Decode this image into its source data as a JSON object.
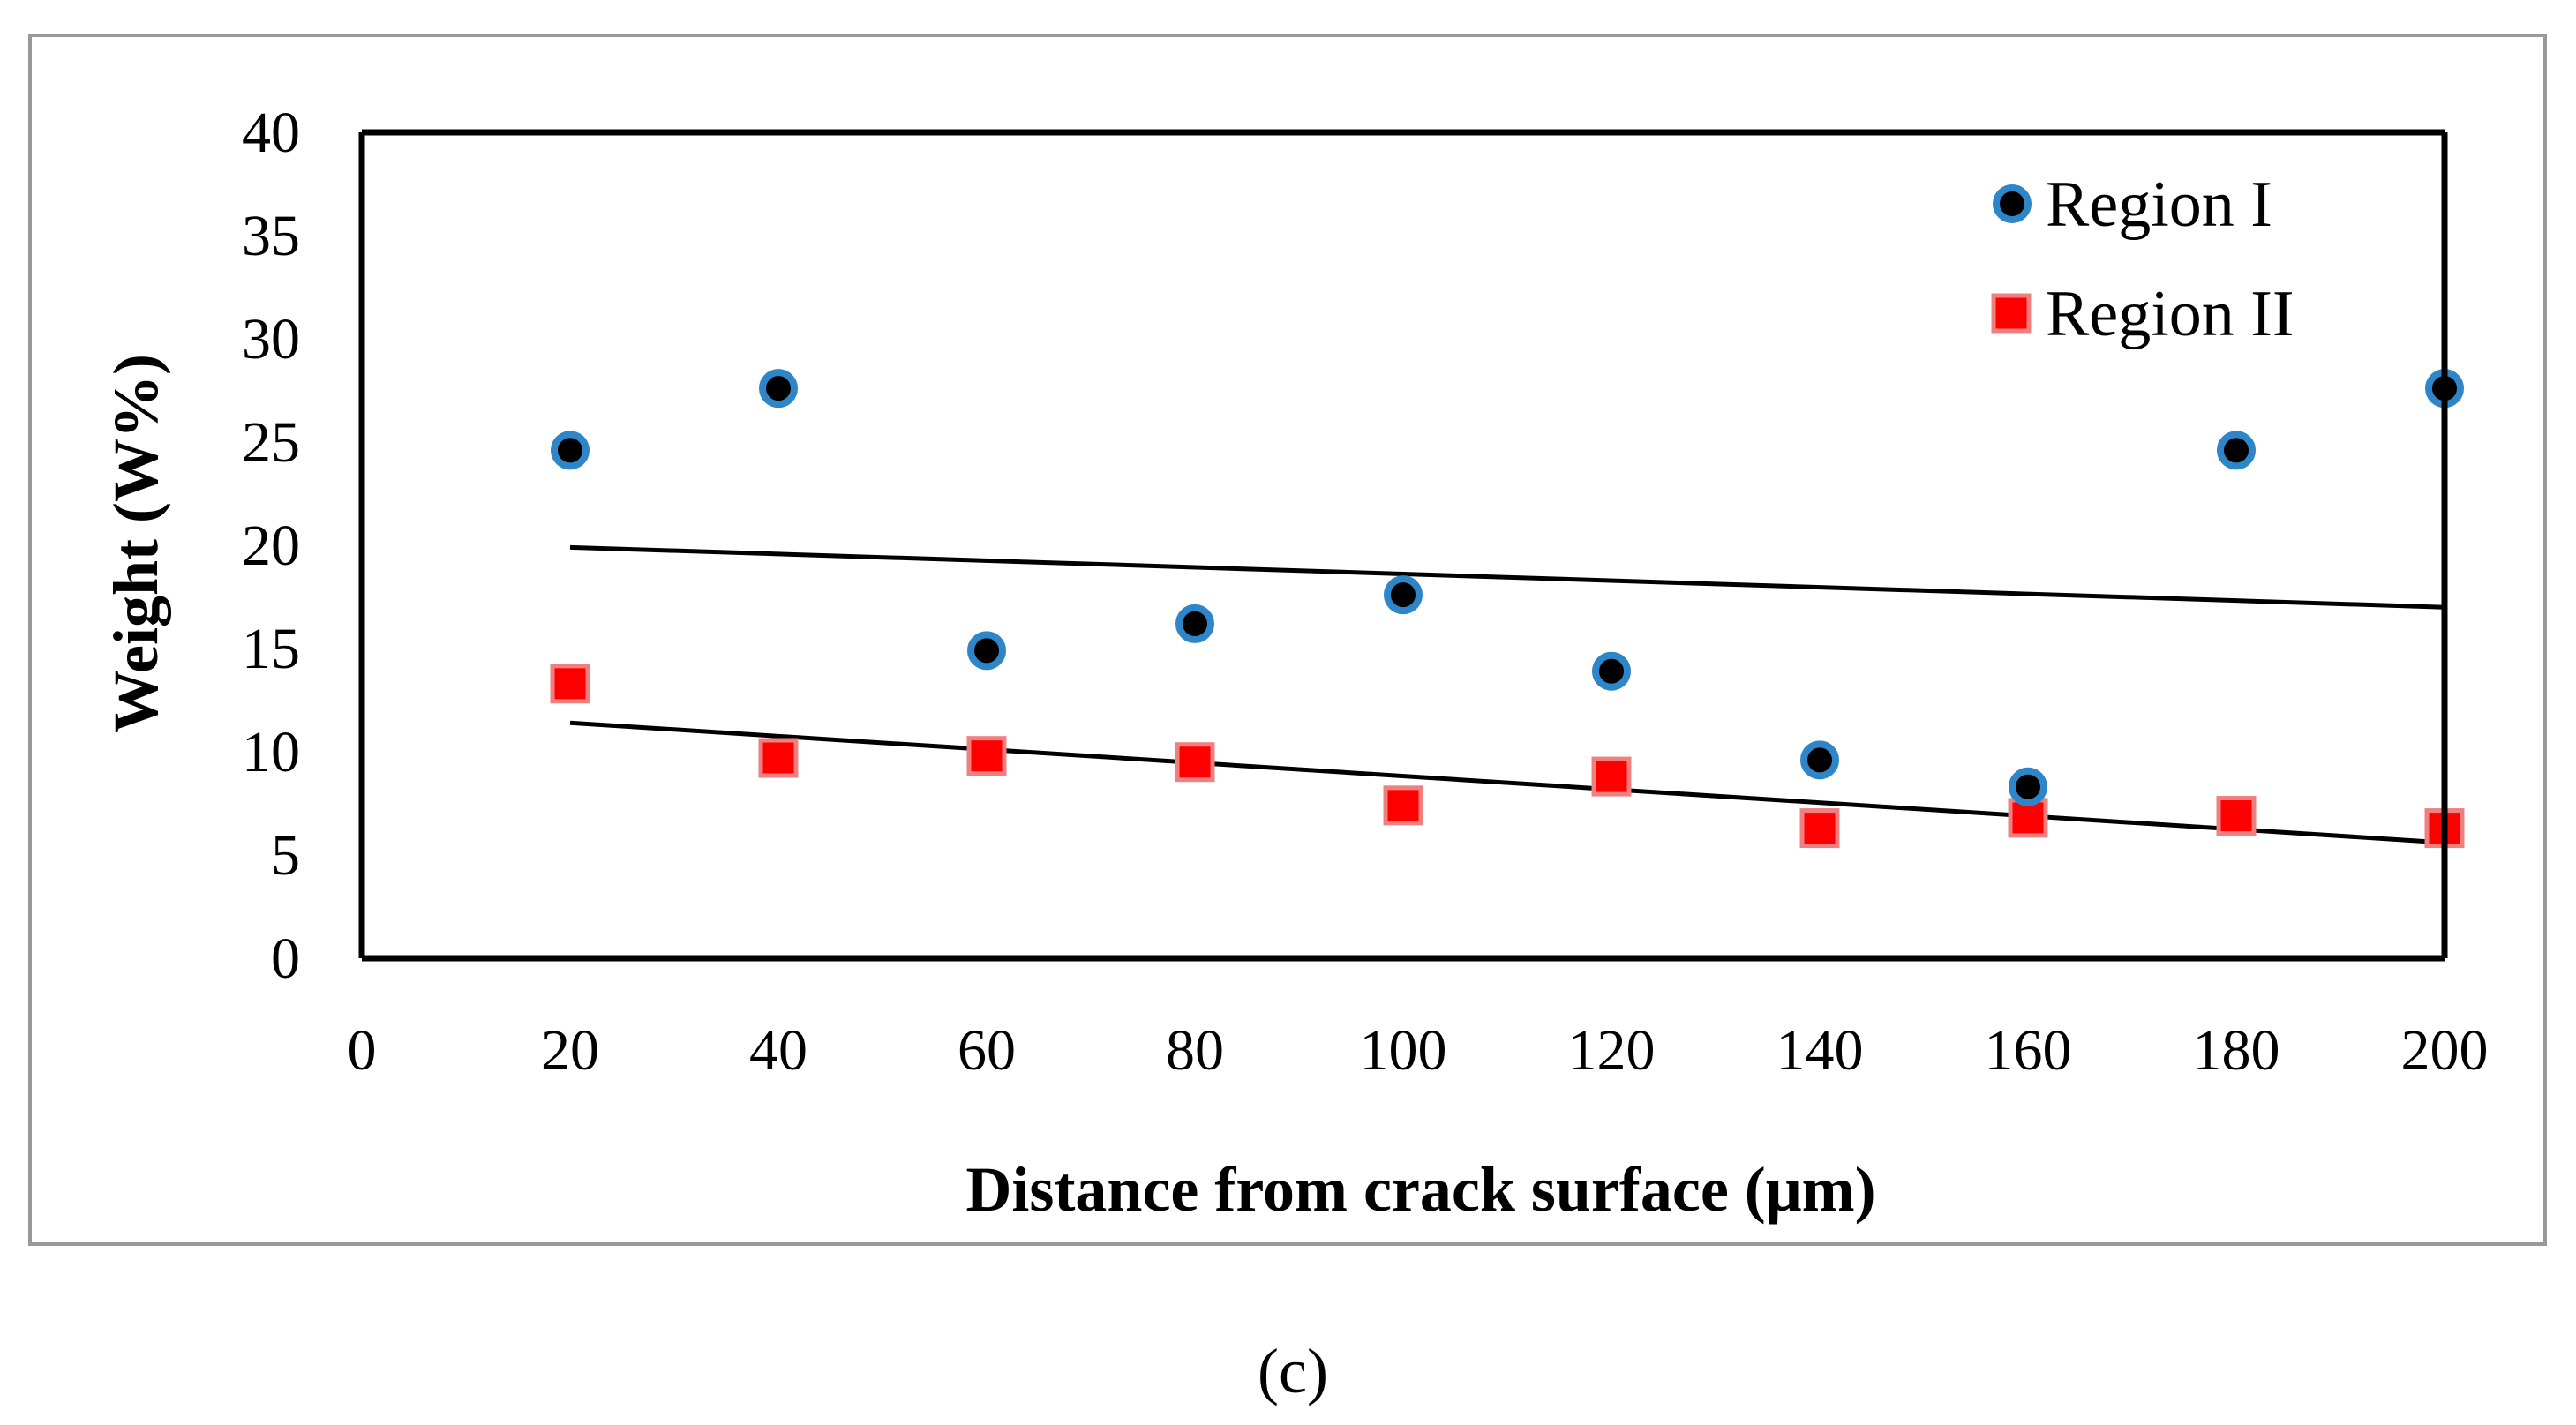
{
  "chart_data": {
    "type": "scatter",
    "title": "",
    "xlabel": "Distance from crack surface (μm)",
    "ylabel": "Weight (W%)",
    "xlim": [
      0,
      200
    ],
    "ylim": [
      0,
      40
    ],
    "xticks": [
      0,
      20,
      40,
      60,
      80,
      100,
      120,
      140,
      160,
      180,
      200
    ],
    "yticks": [
      0,
      5,
      10,
      15,
      20,
      25,
      30,
      35,
      40
    ],
    "grid": false,
    "legend_position": "top-right",
    "caption": "(c)",
    "colors": {
      "frame": "#999999",
      "axes": "#000000",
      "region1_fill": "#000000",
      "region1_edge": "#2e86c8",
      "region2_fill": "#ff0000",
      "region2_edge": "#f08080",
      "trendline": "#000000"
    },
    "series": [
      {
        "name": "Region I",
        "marker": "circle",
        "x": [
          20,
          40,
          60,
          80,
          100,
          120,
          140,
          160,
          180,
          200
        ],
        "y": [
          24.6,
          27.6,
          14.9,
          16.2,
          17.6,
          13.9,
          9.6,
          8.3,
          24.6,
          27.6
        ],
        "trendline": {
          "x": [
            20,
            200
          ],
          "y": [
            19.9,
            17.0
          ]
        }
      },
      {
        "name": "Region II",
        "marker": "square",
        "x": [
          20,
          40,
          60,
          80,
          100,
          120,
          140,
          160,
          180,
          200
        ],
        "y": [
          13.3,
          9.7,
          9.8,
          9.5,
          7.4,
          8.8,
          6.3,
          6.8,
          6.9,
          6.3
        ],
        "trendline": {
          "x": [
            20,
            200
          ],
          "y": [
            11.4,
            5.6
          ]
        }
      }
    ]
  }
}
